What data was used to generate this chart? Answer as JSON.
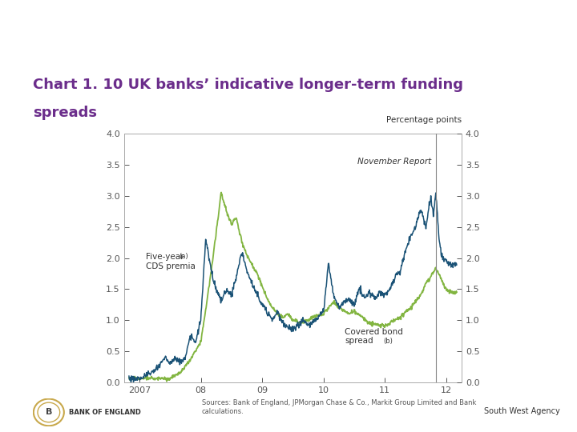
{
  "title_line1": "Chart 1. 10 UK banks’ indicative longer-term funding",
  "title_line2": "spreads",
  "title_color": "#6B2D8B",
  "title_fontsize": 13,
  "title_fontweight": "bold",
  "ylabel": "Percentage points",
  "ylim": [
    0.0,
    4.0
  ],
  "yticks": [
    0.0,
    0.5,
    1.0,
    1.5,
    2.0,
    2.5,
    3.0,
    3.5,
    4.0
  ],
  "xtick_labels": [
    "2007",
    "08",
    "09",
    "10",
    "11",
    "12"
  ],
  "xtick_positions": [
    2007.0,
    2008.0,
    2009.0,
    2010.0,
    2011.0,
    2012.0
  ],
  "xmin": 2006.75,
  "xmax": 2012.25,
  "november_report_x": 2011.83,
  "cds_color": "#1A5276",
  "covered_color": "#82B541",
  "background_color": "#FFFFFF",
  "plot_bg_color": "#FFFFFF",
  "source_text": "Sources: Bank of England, JPMorgan Chase & Co., Markit Group Limited and Bank\ncalculations.",
  "footer_right": "South West Agency",
  "annotation_cds": "Five-year\nCDS premia",
  "annotation_cds_super": "(a)",
  "annotation_covered": "Covered bond\nspread",
  "annotation_covered_super": "(b)",
  "annotation_nov": "November Report"
}
